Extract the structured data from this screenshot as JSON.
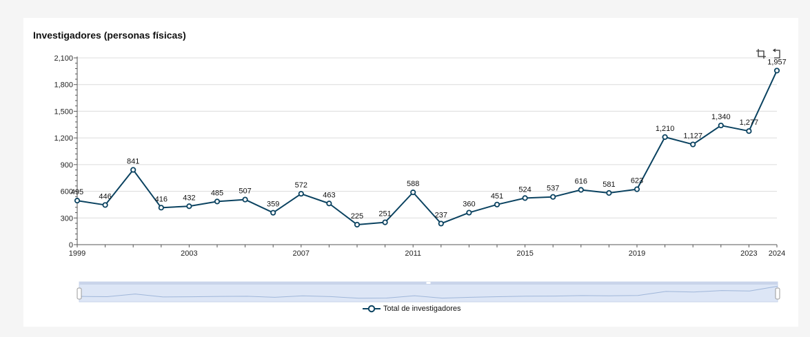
{
  "title": "Investigadores (personas físicas)",
  "colors": {
    "series": "#0a4260",
    "grid": "#dcdcdc",
    "zoom_fill": "#dde6f6",
    "zoom_border": "#c9d4ea",
    "zoom_line": "#9fb6d9"
  },
  "icons": {
    "zoom": "crop-icon",
    "reset": "restore-icon"
  },
  "chart_data": {
    "type": "line",
    "title": "Investigadores (personas físicas)",
    "xlabel": "",
    "ylabel": "",
    "x": [
      1999,
      2000,
      2001,
      2002,
      2003,
      2004,
      2005,
      2006,
      2007,
      2008,
      2009,
      2010,
      2011,
      2012,
      2013,
      2014,
      2015,
      2016,
      2017,
      2018,
      2019,
      2020,
      2021,
      2022,
      2023,
      2024
    ],
    "x_tick_labels": [
      "1999",
      "2003",
      "2007",
      "2011",
      "2015",
      "2019",
      "2023",
      "2024"
    ],
    "y_tick_labels": [
      "0",
      "300",
      "600",
      "900",
      "1,200",
      "1,500",
      "1,800",
      "2,100"
    ],
    "ylim": [
      0,
      2100
    ],
    "grid": true,
    "legend_position": "bottom-center",
    "series": [
      {
        "name": "Total de investigadores",
        "values": [
          495,
          446,
          841,
          416,
          432,
          485,
          507,
          359,
          572,
          463,
          225,
          251,
          588,
          237,
          360,
          451,
          524,
          537,
          616,
          581,
          623,
          1210,
          1127,
          1340,
          1277,
          1957
        ],
        "labels": [
          "495",
          "446",
          "841",
          "416",
          "432",
          "485",
          "507",
          "359",
          "572",
          "463",
          "225",
          "251",
          "588",
          "237",
          "360",
          "451",
          "524",
          "537",
          "616",
          "581",
          "623",
          "1,210",
          "1,127",
          "1,340",
          "1,277",
          "1,957"
        ]
      }
    ]
  }
}
